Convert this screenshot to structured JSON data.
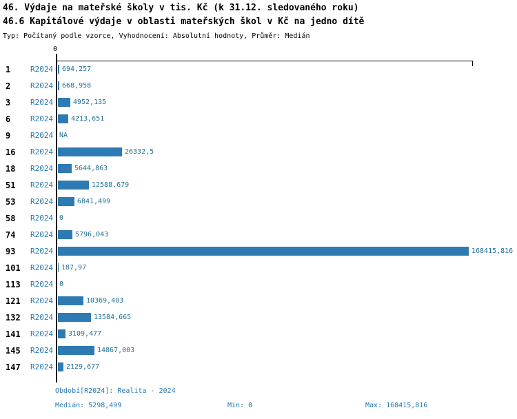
{
  "header": {
    "title1": "46. Výdaje na mateřské školy v tis. Kč (k 31.12. sledovaného roku)",
    "title2": "46.6 Kapitálové výdaje v oblasti mateřských škol v Kč na jedno dítě",
    "meta": "Typ: Počítaný podle vzorce, Vyhodnocení: Absolutní hodnoty, Průměr: Medián"
  },
  "chart": {
    "axis_zero": "0"
  },
  "chart_data": {
    "type": "bar",
    "orientation": "horizontal",
    "title": "46.6 Kapitálové výdaje v oblasti mateřských škol v Kč na jedno dítě",
    "xlabel": "",
    "ylabel": "",
    "xlim": [
      0,
      168415.816
    ],
    "grid": false,
    "legend": false,
    "series_label": "R2024",
    "categories": [
      "1",
      "2",
      "3",
      "6",
      "9",
      "16",
      "18",
      "51",
      "53",
      "58",
      "74",
      "93",
      "101",
      "113",
      "121",
      "132",
      "141",
      "145",
      "147"
    ],
    "values": [
      694.257,
      668.958,
      4952.135,
      4213.651,
      null,
      26332.5,
      5644.863,
      12588.679,
      6841.499,
      0,
      5796.043,
      168415.816,
      187.97,
      0,
      10369.403,
      13584.665,
      3109.477,
      14867.003,
      2129.677
    ],
    "rows": [
      {
        "id": "1",
        "period": "R2024",
        "label": "694,257",
        "value": 694.257
      },
      {
        "id": "2",
        "period": "R2024",
        "label": "668,958",
        "value": 668.958
      },
      {
        "id": "3",
        "period": "R2024",
        "label": "4952,135",
        "value": 4952.135
      },
      {
        "id": "6",
        "period": "R2024",
        "label": "4213,651",
        "value": 4213.651
      },
      {
        "id": "9",
        "period": "R2024",
        "label": "NA",
        "value": null
      },
      {
        "id": "16",
        "period": "R2024",
        "label": "26332,5",
        "value": 26332.5
      },
      {
        "id": "18",
        "period": "R2024",
        "label": "5644,863",
        "value": 5644.863
      },
      {
        "id": "51",
        "period": "R2024",
        "label": "12588,679",
        "value": 12588.679
      },
      {
        "id": "53",
        "period": "R2024",
        "label": "6841,499",
        "value": 6841.499
      },
      {
        "id": "58",
        "period": "R2024",
        "label": "0",
        "value": 0
      },
      {
        "id": "74",
        "period": "R2024",
        "label": "5796,043",
        "value": 5796.043
      },
      {
        "id": "93",
        "period": "R2024",
        "label": "168415,816",
        "value": 168415.816
      },
      {
        "id": "101",
        "period": "R2024",
        "label": "187,97",
        "value": 187.97
      },
      {
        "id": "113",
        "period": "R2024",
        "label": "0",
        "value": 0
      },
      {
        "id": "121",
        "period": "R2024",
        "label": "10369,403",
        "value": 10369.403
      },
      {
        "id": "132",
        "period": "R2024",
        "label": "13584,665",
        "value": 13584.665
      },
      {
        "id": "141",
        "period": "R2024",
        "label": "3109,477",
        "value": 3109.477
      },
      {
        "id": "145",
        "period": "R2024",
        "label": "14867,003",
        "value": 14867.003
      },
      {
        "id": "147",
        "period": "R2024",
        "label": "2129,677",
        "value": 2129.677
      }
    ]
  },
  "footer": {
    "period": "Období[R2024]: Realita - 2024",
    "median": "Medián: 5298,499",
    "min": "Min: 0",
    "max": "Max: 168415,816"
  },
  "colors": {
    "bar": "#2d7bb2",
    "period_text": "#2878af",
    "value_text": "#1f7095",
    "footer_text": "#2878af",
    "axis": "#000000"
  }
}
